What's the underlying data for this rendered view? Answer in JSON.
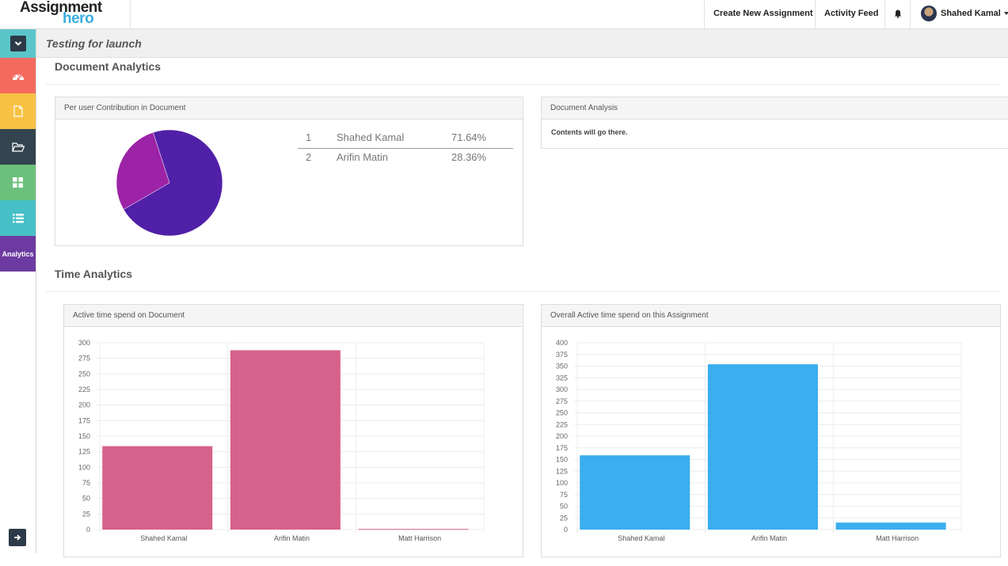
{
  "header": {
    "logo_line1": "Assignment",
    "logo_line2": "hero",
    "nav": {
      "create_label": "Create New Assignment",
      "activity_label": "Activity Feed",
      "user_name": "Shahed Kamal"
    }
  },
  "sidebar": {
    "analytics_label": "Analytics"
  },
  "subheader": {
    "title": "Testing for launch"
  },
  "document_analytics": {
    "title": "Document Analytics",
    "contribution_panel_title": "Per user Contribution in Document",
    "contributions": [
      {
        "index": "1",
        "name": "Shahed Kamal",
        "percent": "71.64%",
        "value": 71.64,
        "color": "#5120a8"
      },
      {
        "index": "2",
        "name": "Arifin Matin",
        "percent": "28.36%",
        "value": 28.36,
        "color": "#9c22a6"
      }
    ],
    "analysis_panel_title": "Document Analysis",
    "analysis_content": "Contents will go there."
  },
  "time_analytics": {
    "title": "Time Analytics",
    "doc_panel_title": "Active time spend on Document",
    "assignment_panel_title": "Overall Active time spend on this Assignment"
  },
  "chart_data": [
    {
      "type": "pie",
      "title": "Per user Contribution in Document",
      "categories": [
        "Shahed Kamal",
        "Arifin Matin"
      ],
      "values": [
        71.64,
        28.36
      ],
      "colors": [
        "#5120a8",
        "#9c22a6"
      ]
    },
    {
      "type": "bar",
      "title": "Active time spend on Document",
      "categories": [
        "Shahed Kamal",
        "Arifin Matin",
        "Matt Harrison"
      ],
      "values": [
        134,
        288,
        1
      ],
      "ylim": [
        0,
        300
      ],
      "yticks": [
        0,
        25,
        50,
        75,
        100,
        125,
        150,
        175,
        200,
        225,
        250,
        275,
        300
      ],
      "color": "#d6628b",
      "grid": true
    },
    {
      "type": "bar",
      "title": "Overall Active time spend on this Assignment",
      "categories": [
        "Shahed Kamal",
        "Arifin Matin",
        "Matt Harrison"
      ],
      "values": [
        159,
        354,
        15
      ],
      "ylim": [
        0,
        400
      ],
      "yticks": [
        0,
        25,
        50,
        75,
        100,
        125,
        150,
        175,
        200,
        225,
        250,
        275,
        300,
        325,
        350,
        375,
        400
      ],
      "color": "#3aaeef",
      "grid": true
    }
  ]
}
